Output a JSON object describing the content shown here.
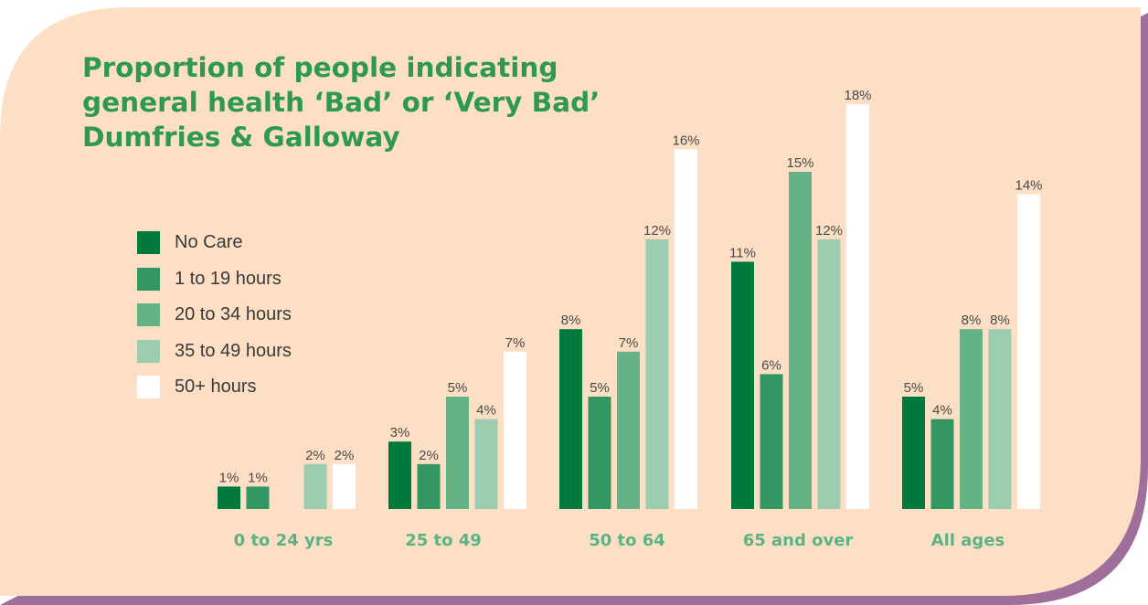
{
  "colors": {
    "background": "#fcdfc4",
    "border": "#a06e9a",
    "title": "#2e9a4f",
    "category_label": "#5bb385"
  },
  "chart_data": {
    "type": "bar",
    "title": "Proportion of people indicating general health ‘Bad’ or ‘Very Bad’ Dumfries & Galloway",
    "title_lines": [
      "Proportion of people indicating",
      "general health ‘Bad’ or ‘Very Bad’",
      "Dumfries & Galloway"
    ],
    "categories": [
      "0 to 24 yrs",
      "25 to 49",
      "50 to 64",
      "65 and over",
      "All ages"
    ],
    "series": [
      {
        "name": "No Care",
        "color": "#007a3c",
        "values": [
          1,
          3,
          8,
          11,
          5
        ]
      },
      {
        "name": "1 to 19 hours",
        "color": "#329763",
        "values": [
          1,
          2,
          5,
          6,
          4
        ]
      },
      {
        "name": "20 to 34 hours",
        "color": "#65b286",
        "values": [
          null,
          5,
          7,
          15,
          8
        ]
      },
      {
        "name": "35 to 49 hours",
        "color": "#9ccdb1",
        "values": [
          2,
          4,
          12,
          12,
          8
        ]
      },
      {
        "name": "50+ hours",
        "color": "#ffffff",
        "values": [
          2,
          7,
          16,
          18,
          14
        ]
      }
    ],
    "value_suffix": "%",
    "ylim": [
      0,
      18
    ],
    "legend_position": "left",
    "grid": false,
    "xlabel": "",
    "ylabel": ""
  }
}
